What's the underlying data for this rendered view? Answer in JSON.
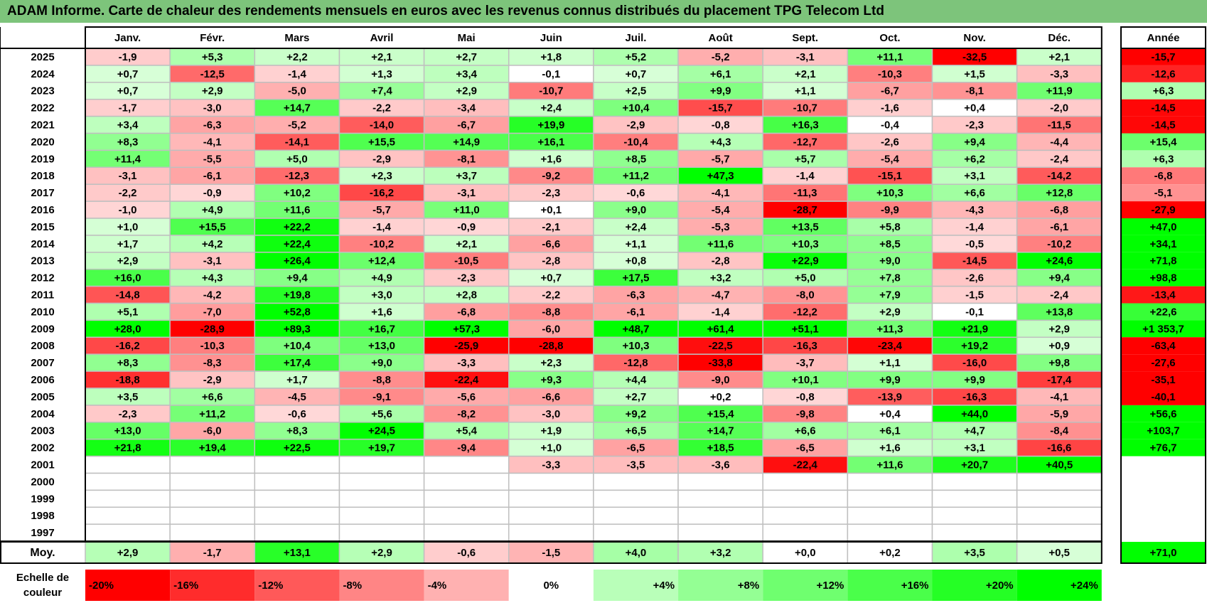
{
  "title": "ADAM Informe. Carte de chaleur des rendements mensuels en euros avec les revenus connus distribués du placement TPG Telecom Ltd",
  "chart_data": {
    "type": "heatmap",
    "columns": [
      "Janv.",
      "Févr.",
      "Mars",
      "Avril",
      "Mai",
      "Juin",
      "Juil.",
      "Août",
      "Sept.",
      "Oct.",
      "Nov.",
      "Déc."
    ],
    "year_header": "Année",
    "rows": [
      {
        "year": "2025",
        "values": [
          "-1,9",
          "+5,3",
          "+2,2",
          "+2,1",
          "+2,7",
          "+1,8",
          "+5,2",
          "-5,2",
          "-3,1",
          "+11,1",
          "-32,5",
          "+2,1"
        ],
        "annual": "-15,7"
      },
      {
        "year": "2024",
        "values": [
          "+0,7",
          "-12,5",
          "-1,4",
          "+1,3",
          "+3,4",
          "-0,1",
          "+0,7",
          "+6,1",
          "+2,1",
          "-10,3",
          "+1,5",
          "-3,3"
        ],
        "annual": "-12,6"
      },
      {
        "year": "2023",
        "values": [
          "+0,7",
          "+2,9",
          "-5,0",
          "+7,4",
          "+2,9",
          "-10,7",
          "+2,5",
          "+9,9",
          "+1,1",
          "-6,7",
          "-8,1",
          "+11,9"
        ],
        "annual": "+6,3"
      },
      {
        "year": "2022",
        "values": [
          "-1,7",
          "-3,0",
          "+14,7",
          "-2,2",
          "-3,4",
          "+2,4",
          "+10,4",
          "-15,7",
          "-10,7",
          "-1,6",
          "+0,4",
          "-2,0"
        ],
        "annual": "-14,5"
      },
      {
        "year": "2021",
        "values": [
          "+3,4",
          "-6,3",
          "-5,2",
          "-14,0",
          "-6,7",
          "+19,9",
          "-2,9",
          "-0,8",
          "+16,3",
          "-0,4",
          "-2,3",
          "-11,5"
        ],
        "annual": "-14,5"
      },
      {
        "year": "2020",
        "values": [
          "+8,3",
          "-4,1",
          "-14,1",
          "+15,5",
          "+14,9",
          "+16,1",
          "-10,4",
          "+4,3",
          "-12,7",
          "-2,6",
          "+9,4",
          "-4,4"
        ],
        "annual": "+15,4"
      },
      {
        "year": "2019",
        "values": [
          "+11,4",
          "-5,5",
          "+5,0",
          "-2,9",
          "-8,1",
          "+1,6",
          "+8,5",
          "-5,7",
          "+5,7",
          "-5,4",
          "+6,2",
          "-2,4"
        ],
        "annual": "+6,3"
      },
      {
        "year": "2018",
        "values": [
          "-3,1",
          "-6,1",
          "-12,3",
          "+2,3",
          "+3,7",
          "-9,2",
          "+11,2",
          "+47,3",
          "-1,4",
          "-15,1",
          "+3,1",
          "-14,2"
        ],
        "annual": "-6,8"
      },
      {
        "year": "2017",
        "values": [
          "-2,2",
          "-0,9",
          "+10,2",
          "-16,2",
          "-3,1",
          "-2,3",
          "-0,6",
          "-4,1",
          "-11,3",
          "+10,3",
          "+6,6",
          "+12,8"
        ],
        "annual": "-5,1"
      },
      {
        "year": "2016",
        "values": [
          "-1,0",
          "+4,9",
          "+11,6",
          "-5,7",
          "+11,0",
          "+0,1",
          "+9,0",
          "-5,4",
          "-28,7",
          "-9,9",
          "-4,3",
          "-6,8"
        ],
        "annual": "-27,9"
      },
      {
        "year": "2015",
        "values": [
          "+1,0",
          "+15,5",
          "+22,2",
          "-1,4",
          "-0,9",
          "-2,1",
          "+2,4",
          "-5,3",
          "+13,5",
          "+5,8",
          "-1,4",
          "-6,1"
        ],
        "annual": "+47,0"
      },
      {
        "year": "2014",
        "values": [
          "+1,7",
          "+4,2",
          "+22,4",
          "-10,2",
          "+2,1",
          "-6,6",
          "+1,1",
          "+11,6",
          "+10,3",
          "+8,5",
          "-0,5",
          "-10,2"
        ],
        "annual": "+34,1"
      },
      {
        "year": "2013",
        "values": [
          "+2,9",
          "-3,1",
          "+26,4",
          "+12,4",
          "-10,5",
          "-2,8",
          "+0,8",
          "-2,8",
          "+22,9",
          "+9,0",
          "-14,5",
          "+24,6"
        ],
        "annual": "+71,8"
      },
      {
        "year": "2012",
        "values": [
          "+16,0",
          "+4,3",
          "+9,4",
          "+4,9",
          "-2,3",
          "+0,7",
          "+17,5",
          "+3,2",
          "+5,0",
          "+7,8",
          "-2,6",
          "+9,4"
        ],
        "annual": "+98,8"
      },
      {
        "year": "2011",
        "values": [
          "-14,8",
          "-4,2",
          "+19,8",
          "+3,0",
          "+2,8",
          "-2,2",
          "-6,3",
          "-4,7",
          "-8,0",
          "+7,9",
          "-1,5",
          "-2,4"
        ],
        "annual": "-13,4"
      },
      {
        "year": "2010",
        "values": [
          "+5,1",
          "-7,0",
          "+52,8",
          "+1,6",
          "-6,8",
          "-8,8",
          "-6,1",
          "-1,4",
          "-12,2",
          "+2,9",
          "-0,1",
          "+13,8"
        ],
        "annual": "+22,6"
      },
      {
        "year": "2009",
        "values": [
          "+28,0",
          "-28,9",
          "+89,3",
          "+16,7",
          "+57,3",
          "-6,0",
          "+48,7",
          "+61,4",
          "+51,1",
          "+11,3",
          "+21,9",
          "+2,9"
        ],
        "annual": "+1 353,7"
      },
      {
        "year": "2008",
        "values": [
          "-16,2",
          "-10,3",
          "+10,4",
          "+13,0",
          "-25,9",
          "-28,8",
          "+10,3",
          "-22,5",
          "-16,3",
          "-23,4",
          "+19,2",
          "+0,9"
        ],
        "annual": "-63,4"
      },
      {
        "year": "2007",
        "values": [
          "+8,3",
          "-8,3",
          "+17,4",
          "+9,0",
          "-3,3",
          "+2,3",
          "-12,8",
          "-33,8",
          "-3,7",
          "+1,1",
          "-16,0",
          "+9,8"
        ],
        "annual": "-27,6"
      },
      {
        "year": "2006",
        "values": [
          "-18,8",
          "-2,9",
          "+1,7",
          "-8,8",
          "-22,4",
          "+9,3",
          "+4,4",
          "-9,0",
          "+10,1",
          "+9,9",
          "+9,9",
          "-17,4"
        ],
        "annual": "-35,1"
      },
      {
        "year": "2005",
        "values": [
          "+3,5",
          "+6,6",
          "-4,5",
          "-9,1",
          "-5,6",
          "-6,6",
          "+2,7",
          "+0,2",
          "-0,8",
          "-13,9",
          "-16,3",
          "-4,1"
        ],
        "annual": "-40,1"
      },
      {
        "year": "2004",
        "values": [
          "-2,3",
          "+11,2",
          "-0,6",
          "+5,6",
          "-8,2",
          "-3,0",
          "+9,2",
          "+15,4",
          "-9,8",
          "+0,4",
          "+44,0",
          "-5,9"
        ],
        "annual": "+56,6"
      },
      {
        "year": "2003",
        "values": [
          "+13,0",
          "-6,0",
          "+8,3",
          "+24,5",
          "+5,4",
          "+1,9",
          "+6,5",
          "+14,7",
          "+6,6",
          "+6,1",
          "+4,7",
          "-8,4"
        ],
        "annual": "+103,7"
      },
      {
        "year": "2002",
        "values": [
          "+21,8",
          "+19,4",
          "+22,5",
          "+19,7",
          "-9,4",
          "+1,0",
          "-6,5",
          "+18,5",
          "-6,5",
          "+1,6",
          "+3,1",
          "-16,6"
        ],
        "annual": "+76,7"
      },
      {
        "year": "2001",
        "values": [
          "",
          "",
          "",
          "",
          "",
          "-3,3",
          "-3,5",
          "-3,6",
          "-22,4",
          "+11,6",
          "+20,7",
          "+40,5"
        ],
        "annual": ""
      },
      {
        "year": "2000",
        "values": [
          "",
          "",
          "",
          "",
          "",
          "",
          "",
          "",
          "",
          "",
          "",
          ""
        ],
        "annual": ""
      },
      {
        "year": "1999",
        "values": [
          "",
          "",
          "",
          "",
          "",
          "",
          "",
          "",
          "",
          "",
          "",
          ""
        ],
        "annual": ""
      },
      {
        "year": "1998",
        "values": [
          "",
          "",
          "",
          "",
          "",
          "",
          "",
          "",
          "",
          "",
          "",
          ""
        ],
        "annual": ""
      },
      {
        "year": "1997",
        "values": [
          "",
          "",
          "",
          "",
          "",
          "",
          "",
          "",
          "",
          "",
          "",
          ""
        ],
        "annual": ""
      }
    ],
    "average": {
      "label": "Moy.",
      "values": [
        "+2,9",
        "-1,7",
        "+13,1",
        "+2,9",
        "-0,6",
        "-1,5",
        "+4,0",
        "+3,2",
        "+0,0",
        "+0,2",
        "+3,5",
        "+0,5"
      ],
      "annual": "+71,0"
    },
    "scale": {
      "label_lines": [
        "Echelle de",
        "couleur"
      ],
      "stops": [
        "-20%",
        "-16%",
        "-12%",
        "-8%",
        "-4%",
        "0%",
        "+4%",
        "+8%",
        "+12%",
        "+16%",
        "+20%",
        "+24%"
      ]
    },
    "colors": {
      "negative_max": "#ff0000",
      "positive_max": "#00ff00",
      "neutral": "#ffffff",
      "title_band": "#7dc47b",
      "grid": "#bfbfbf",
      "frame": "#000000"
    }
  }
}
